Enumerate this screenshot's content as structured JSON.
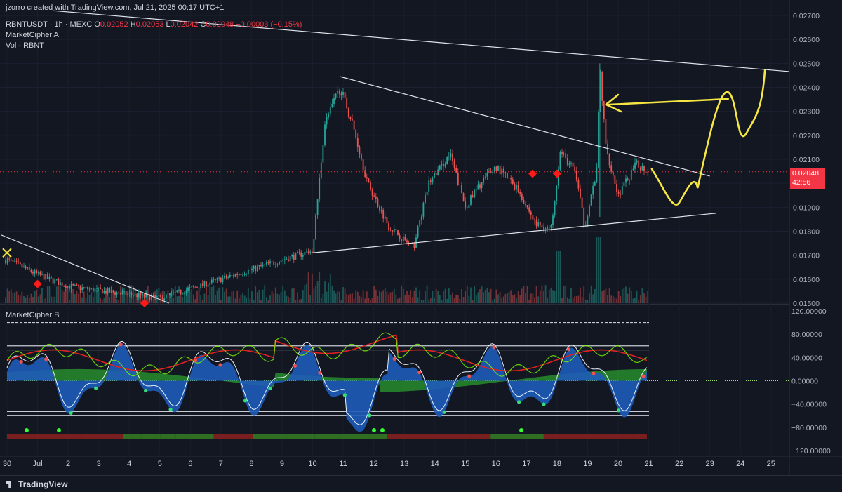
{
  "watermark": "jzorro created with TradingView.com, Jul 21, 2025 00:17 UTC+1",
  "legend": {
    "symbol_line": "RBNTUSDT · 1h · MEXC",
    "ohlc": [
      {
        "k": "O",
        "v": "0.02052"
      },
      {
        "k": "H",
        "v": "0.02053"
      },
      {
        "k": "L",
        "v": "0.02042"
      },
      {
        "k": "C",
        "v": "0.02048"
      }
    ],
    "change": "−0.00003 (−0.15%)",
    "indicator_a": "MarketCipher A",
    "volume": "Vol · RBNT"
  },
  "oscillator_title": "MarketCipher B",
  "price_tag": {
    "price": "0.02048",
    "countdown": "42:56",
    "color": "#f23645"
  },
  "footer_brand": "TradingView",
  "colors": {
    "bg": "#131722",
    "up": "#26a69a",
    "down": "#ef5350",
    "wave_blue": "#1e5bb8",
    "wave_green": "#33cc33",
    "trend_line": "#e0e3eb",
    "annotation": "#f5e642"
  },
  "chart_data": [
    {
      "type": "candlestick",
      "title": "RBNTUSDT · 1h · MEXC",
      "y_axis_ticks": [
        "0.02700",
        "0.02600",
        "0.02500",
        "0.02400",
        "0.02300",
        "0.02200",
        "0.02100",
        "0.02000",
        "0.01900",
        "0.01800",
        "0.01700",
        "0.01600",
        "0.01500"
      ],
      "ylim": [
        0.015,
        0.027
      ],
      "x_axis_ticks": [
        "30",
        "Jul",
        "2",
        "3",
        "4",
        "5",
        "6",
        "7",
        "8",
        "9",
        "10",
        "11",
        "12",
        "13",
        "14",
        "15",
        "16",
        "17",
        "18",
        "19",
        "20",
        "21",
        "22",
        "23",
        "24",
        "25"
      ],
      "last_price": 0.02048,
      "price_keypoints": [
        {
          "x": "30",
          "price": 0.0168
        },
        {
          "x": "Jul",
          "price": 0.0162
        },
        {
          "x": "2",
          "price": 0.0157
        },
        {
          "x": "5",
          "price": 0.0152
        },
        {
          "x": "10",
          "price": 0.0172
        },
        {
          "x": "10.4",
          "price": 0.0225
        },
        {
          "x": "10.9",
          "price": 0.024
        },
        {
          "x": "11.3",
          "price": 0.0225
        },
        {
          "x": "11.8",
          "price": 0.02
        },
        {
          "x": "12.5",
          "price": 0.0182
        },
        {
          "x": "13.3",
          "price": 0.0173
        },
        {
          "x": "13.8",
          "price": 0.02
        },
        {
          "x": "14.5",
          "price": 0.0212
        },
        {
          "x": "15.0",
          "price": 0.019
        },
        {
          "x": "15.5",
          "price": 0.02
        },
        {
          "x": "16.0",
          "price": 0.0207
        },
        {
          "x": "16.7",
          "price": 0.0198
        },
        {
          "x": "17.3",
          "price": 0.0183
        },
        {
          "x": "17.8",
          "price": 0.0181
        },
        {
          "x": "18.1",
          "price": 0.0213
        },
        {
          "x": "18.6",
          "price": 0.0205
        },
        {
          "x": "18.9",
          "price": 0.0182
        },
        {
          "x": "19.3",
          "price": 0.0205
        },
        {
          "x": "19.4",
          "price": 0.0248
        },
        {
          "x": "19.6",
          "price": 0.0215
        },
        {
          "x": "20.0",
          "price": 0.0195
        },
        {
          "x": "20.6",
          "price": 0.0208
        },
        {
          "x": "21.0",
          "price": 0.02048
        }
      ],
      "markers": [
        {
          "shape": "x",
          "x": "30",
          "price": 0.0171,
          "color": "#f5e642"
        },
        {
          "shape": "diamond",
          "x": "Jul",
          "price": 0.0158,
          "color": "#ff1a1a"
        },
        {
          "shape": "diamond",
          "x": "4.5",
          "price": 0.015,
          "color": "#ff1a1a"
        },
        {
          "shape": "diamond",
          "x": "17.2",
          "price": 0.0204,
          "color": "#ff1a1a"
        },
        {
          "shape": "diamond",
          "x": "18.0",
          "price": 0.0204,
          "color": "#ff1a1a"
        }
      ],
      "trend_lines": [
        {
          "from": {
            "x": "1.5",
            "price": 0.0272
          },
          "to": {
            "x": "25.7",
            "price": 0.02465
          }
        },
        {
          "from": {
            "x": "10.9",
            "price": 0.02445
          },
          "to": {
            "x": "23.0",
            "price": 0.0203
          }
        },
        {
          "from": {
            "x": "10.0",
            "price": 0.0171
          },
          "to": {
            "x": "23.2",
            "price": 0.01875
          }
        },
        {
          "from": {
            "x": "29.8",
            "price": 0.01785
          },
          "to": {
            "x": "5.3",
            "price": 0.015
          }
        }
      ]
    },
    {
      "type": "area",
      "title": "MarketCipher B",
      "y_axis_ticks": [
        "120.00000",
        "80.00000",
        "40.00000",
        "0.00000",
        "−40.00000",
        "−80.00000",
        "−120.00000"
      ],
      "ylim": [
        -120,
        120
      ],
      "levels": [
        100,
        60,
        53,
        -53,
        -60
      ]
    }
  ]
}
